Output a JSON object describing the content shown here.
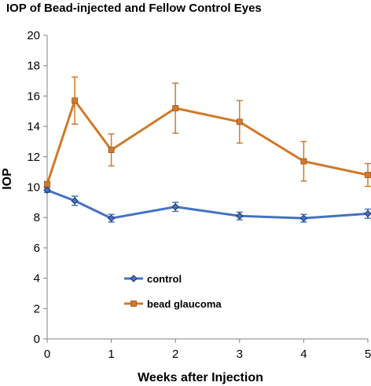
{
  "chart_data": {
    "type": "line",
    "title": "IOP of Bead-injected and Fellow Control Eyes",
    "xlabel": "Weeks after Injection",
    "ylabel": "IOP",
    "xlim": [
      0,
      5
    ],
    "ylim": [
      0,
      20
    ],
    "x_ticks": [
      "0",
      "1",
      "2",
      "3",
      "4",
      "5"
    ],
    "y_ticks": [
      "0",
      "2",
      "4",
      "6",
      "8",
      "10",
      "12",
      "14",
      "16",
      "18",
      "20"
    ],
    "grid": false,
    "legend_position": "lower-left",
    "series": [
      {
        "name": "control",
        "color": "#4472c4",
        "marker": "diamond",
        "x": [
          0,
          0.43,
          1,
          2,
          3,
          4,
          5
        ],
        "y": [
          9.8,
          9.1,
          7.95,
          8.7,
          8.1,
          7.95,
          8.25
        ],
        "error": [
          0.15,
          0.3,
          0.25,
          0.3,
          0.25,
          0.25,
          0.3
        ]
      },
      {
        "name": "bead glaucoma",
        "color": "#d07a2a",
        "marker": "square",
        "x": [
          0,
          0.43,
          1,
          2,
          3,
          4,
          5
        ],
        "y": [
          10.2,
          15.7,
          12.45,
          15.2,
          14.3,
          11.7,
          10.8
        ],
        "error": [
          0.15,
          1.55,
          1.05,
          1.65,
          1.4,
          1.3,
          0.75
        ]
      }
    ]
  }
}
